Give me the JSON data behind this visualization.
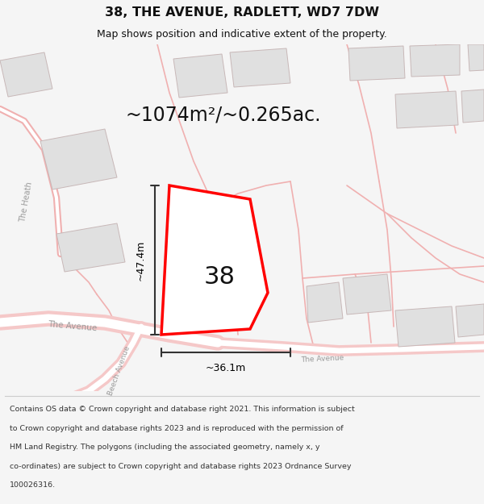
{
  "title_line1": "38, THE AVENUE, RADLETT, WD7 7DW",
  "title_line2": "Map shows position and indicative extent of the property.",
  "area_label": "~1074m²/~0.265ac.",
  "property_number": "38",
  "dim_vertical": "~47.4m",
  "dim_horizontal": "~36.1m",
  "footer_lines": [
    "Contains OS data © Crown copyright and database right 2021. This information is subject",
    "to Crown copyright and database rights 2023 and is reproduced with the permission of",
    "HM Land Registry. The polygons (including the associated geometry, namely x, y",
    "co-ordinates) are subject to Crown copyright and database rights 2023 Ordnance Survey",
    "100026316."
  ],
  "bg_color": "#f5f5f5",
  "map_bg": "#ffffff",
  "road_fill": "#f5c8c8",
  "road_outline": "#e89090",
  "road_thin": "#f0b0b0",
  "block_fill": "#e0e0e0",
  "block_outline": "#c8b8b8",
  "highlight_color": "#ff0000",
  "dim_line_color": "#333333",
  "text_color": "#111111",
  "footer_bg": "#ffffff",
  "road_label_color": "#bbbbbb",
  "label_color": "#999999"
}
